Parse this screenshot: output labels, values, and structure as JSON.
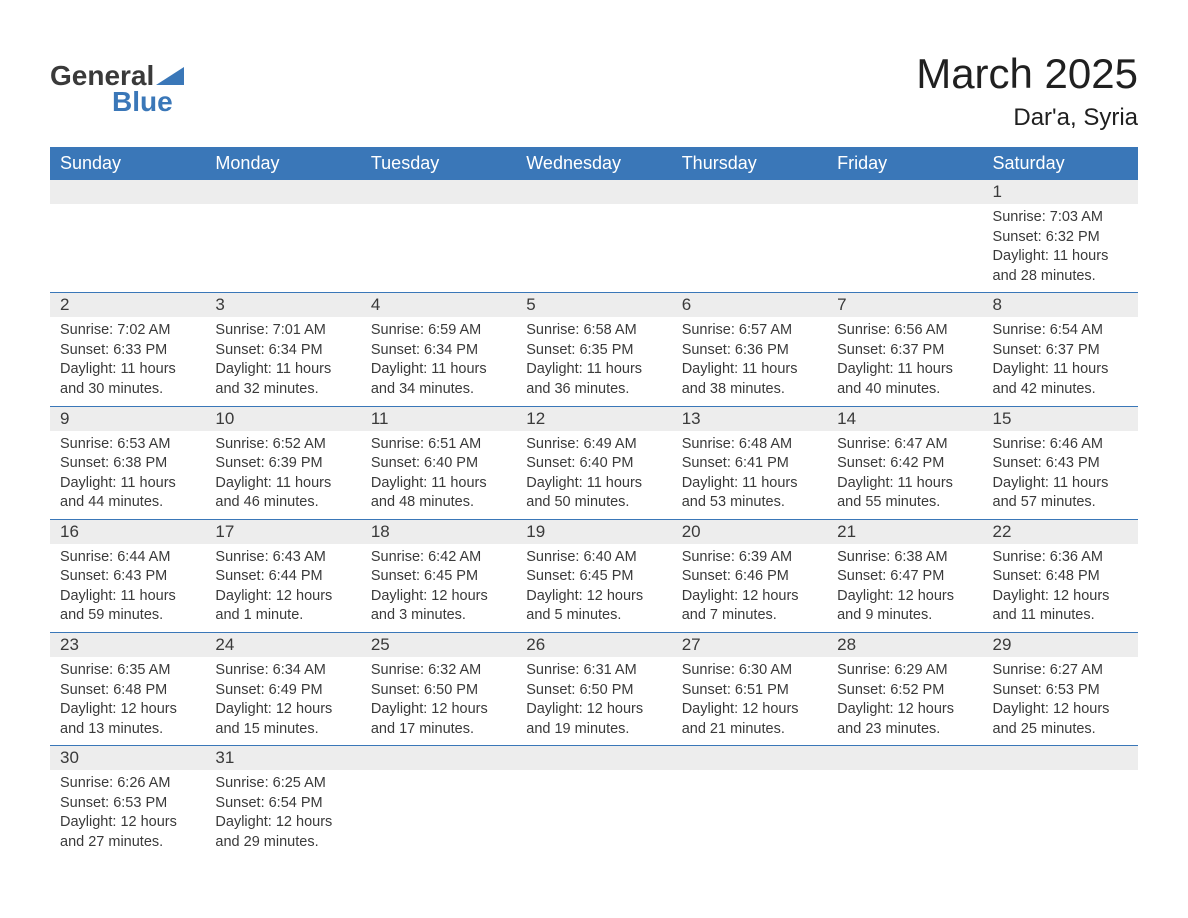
{
  "logo": {
    "part1": "General",
    "part2": "Blue"
  },
  "title": "March 2025",
  "location": "Dar'a, Syria",
  "colors": {
    "header_bg": "#3a77b8",
    "header_text": "#ffffff",
    "daynum_bg": "#ededed",
    "border": "#3a77b8",
    "body_text": "#3a3a3a",
    "background": "#ffffff"
  },
  "typography": {
    "title_fontsize": 42,
    "location_fontsize": 24,
    "header_fontsize": 18,
    "daynum_fontsize": 17,
    "cell_fontsize": 14.5,
    "logo_fontsize": 28
  },
  "day_headers": [
    "Sunday",
    "Monday",
    "Tuesday",
    "Wednesday",
    "Thursday",
    "Friday",
    "Saturday"
  ],
  "weeks": [
    [
      null,
      null,
      null,
      null,
      null,
      null,
      {
        "n": "1",
        "sr": "Sunrise: 7:03 AM",
        "ss": "Sunset: 6:32 PM",
        "d1": "Daylight: 11 hours",
        "d2": "and 28 minutes."
      }
    ],
    [
      {
        "n": "2",
        "sr": "Sunrise: 7:02 AM",
        "ss": "Sunset: 6:33 PM",
        "d1": "Daylight: 11 hours",
        "d2": "and 30 minutes."
      },
      {
        "n": "3",
        "sr": "Sunrise: 7:01 AM",
        "ss": "Sunset: 6:34 PM",
        "d1": "Daylight: 11 hours",
        "d2": "and 32 minutes."
      },
      {
        "n": "4",
        "sr": "Sunrise: 6:59 AM",
        "ss": "Sunset: 6:34 PM",
        "d1": "Daylight: 11 hours",
        "d2": "and 34 minutes."
      },
      {
        "n": "5",
        "sr": "Sunrise: 6:58 AM",
        "ss": "Sunset: 6:35 PM",
        "d1": "Daylight: 11 hours",
        "d2": "and 36 minutes."
      },
      {
        "n": "6",
        "sr": "Sunrise: 6:57 AM",
        "ss": "Sunset: 6:36 PM",
        "d1": "Daylight: 11 hours",
        "d2": "and 38 minutes."
      },
      {
        "n": "7",
        "sr": "Sunrise: 6:56 AM",
        "ss": "Sunset: 6:37 PM",
        "d1": "Daylight: 11 hours",
        "d2": "and 40 minutes."
      },
      {
        "n": "8",
        "sr": "Sunrise: 6:54 AM",
        "ss": "Sunset: 6:37 PM",
        "d1": "Daylight: 11 hours",
        "d2": "and 42 minutes."
      }
    ],
    [
      {
        "n": "9",
        "sr": "Sunrise: 6:53 AM",
        "ss": "Sunset: 6:38 PM",
        "d1": "Daylight: 11 hours",
        "d2": "and 44 minutes."
      },
      {
        "n": "10",
        "sr": "Sunrise: 6:52 AM",
        "ss": "Sunset: 6:39 PM",
        "d1": "Daylight: 11 hours",
        "d2": "and 46 minutes."
      },
      {
        "n": "11",
        "sr": "Sunrise: 6:51 AM",
        "ss": "Sunset: 6:40 PM",
        "d1": "Daylight: 11 hours",
        "d2": "and 48 minutes."
      },
      {
        "n": "12",
        "sr": "Sunrise: 6:49 AM",
        "ss": "Sunset: 6:40 PM",
        "d1": "Daylight: 11 hours",
        "d2": "and 50 minutes."
      },
      {
        "n": "13",
        "sr": "Sunrise: 6:48 AM",
        "ss": "Sunset: 6:41 PM",
        "d1": "Daylight: 11 hours",
        "d2": "and 53 minutes."
      },
      {
        "n": "14",
        "sr": "Sunrise: 6:47 AM",
        "ss": "Sunset: 6:42 PM",
        "d1": "Daylight: 11 hours",
        "d2": "and 55 minutes."
      },
      {
        "n": "15",
        "sr": "Sunrise: 6:46 AM",
        "ss": "Sunset: 6:43 PM",
        "d1": "Daylight: 11 hours",
        "d2": "and 57 minutes."
      }
    ],
    [
      {
        "n": "16",
        "sr": "Sunrise: 6:44 AM",
        "ss": "Sunset: 6:43 PM",
        "d1": "Daylight: 11 hours",
        "d2": "and 59 minutes."
      },
      {
        "n": "17",
        "sr": "Sunrise: 6:43 AM",
        "ss": "Sunset: 6:44 PM",
        "d1": "Daylight: 12 hours",
        "d2": "and 1 minute."
      },
      {
        "n": "18",
        "sr": "Sunrise: 6:42 AM",
        "ss": "Sunset: 6:45 PM",
        "d1": "Daylight: 12 hours",
        "d2": "and 3 minutes."
      },
      {
        "n": "19",
        "sr": "Sunrise: 6:40 AM",
        "ss": "Sunset: 6:45 PM",
        "d1": "Daylight: 12 hours",
        "d2": "and 5 minutes."
      },
      {
        "n": "20",
        "sr": "Sunrise: 6:39 AM",
        "ss": "Sunset: 6:46 PM",
        "d1": "Daylight: 12 hours",
        "d2": "and 7 minutes."
      },
      {
        "n": "21",
        "sr": "Sunrise: 6:38 AM",
        "ss": "Sunset: 6:47 PM",
        "d1": "Daylight: 12 hours",
        "d2": "and 9 minutes."
      },
      {
        "n": "22",
        "sr": "Sunrise: 6:36 AM",
        "ss": "Sunset: 6:48 PM",
        "d1": "Daylight: 12 hours",
        "d2": "and 11 minutes."
      }
    ],
    [
      {
        "n": "23",
        "sr": "Sunrise: 6:35 AM",
        "ss": "Sunset: 6:48 PM",
        "d1": "Daylight: 12 hours",
        "d2": "and 13 minutes."
      },
      {
        "n": "24",
        "sr": "Sunrise: 6:34 AM",
        "ss": "Sunset: 6:49 PM",
        "d1": "Daylight: 12 hours",
        "d2": "and 15 minutes."
      },
      {
        "n": "25",
        "sr": "Sunrise: 6:32 AM",
        "ss": "Sunset: 6:50 PM",
        "d1": "Daylight: 12 hours",
        "d2": "and 17 minutes."
      },
      {
        "n": "26",
        "sr": "Sunrise: 6:31 AM",
        "ss": "Sunset: 6:50 PM",
        "d1": "Daylight: 12 hours",
        "d2": "and 19 minutes."
      },
      {
        "n": "27",
        "sr": "Sunrise: 6:30 AM",
        "ss": "Sunset: 6:51 PM",
        "d1": "Daylight: 12 hours",
        "d2": "and 21 minutes."
      },
      {
        "n": "28",
        "sr": "Sunrise: 6:29 AM",
        "ss": "Sunset: 6:52 PM",
        "d1": "Daylight: 12 hours",
        "d2": "and 23 minutes."
      },
      {
        "n": "29",
        "sr": "Sunrise: 6:27 AM",
        "ss": "Sunset: 6:53 PM",
        "d1": "Daylight: 12 hours",
        "d2": "and 25 minutes."
      }
    ],
    [
      {
        "n": "30",
        "sr": "Sunrise: 6:26 AM",
        "ss": "Sunset: 6:53 PM",
        "d1": "Daylight: 12 hours",
        "d2": "and 27 minutes."
      },
      {
        "n": "31",
        "sr": "Sunrise: 6:25 AM",
        "ss": "Sunset: 6:54 PM",
        "d1": "Daylight: 12 hours",
        "d2": "and 29 minutes."
      },
      null,
      null,
      null,
      null,
      null
    ]
  ]
}
